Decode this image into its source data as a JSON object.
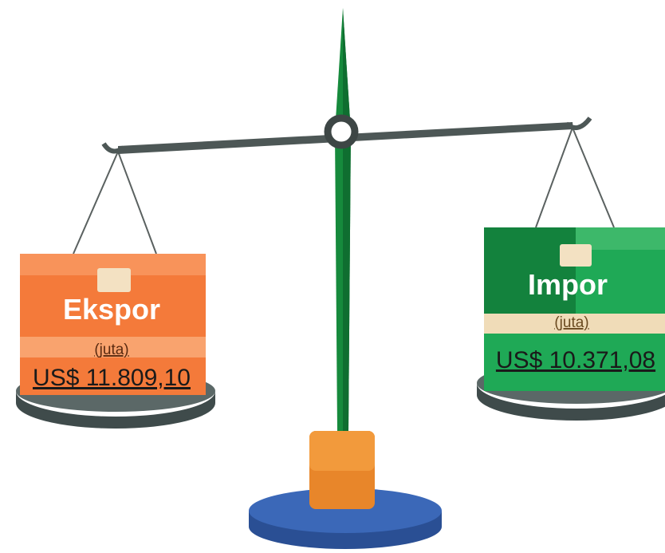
{
  "left": {
    "label": "Ekspor",
    "unit": "(juta)",
    "value": "US$ 11.809,10"
  },
  "right": {
    "label": "Impor",
    "unit": "(juta)",
    "value": "US$ 10.371,08"
  }
}
